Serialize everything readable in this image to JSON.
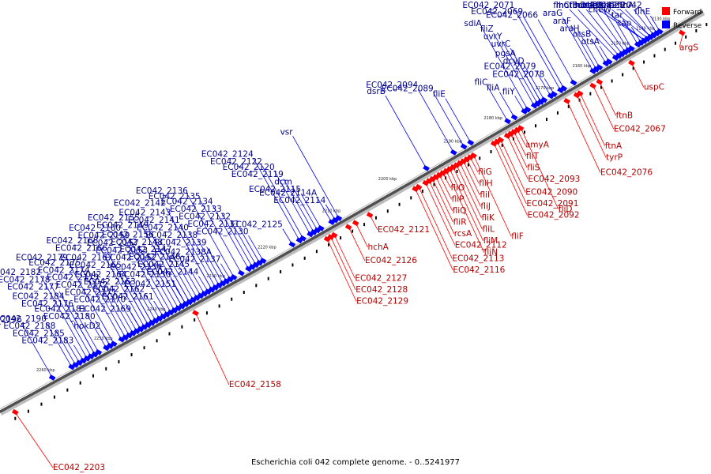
{
  "caption": "Escherichia coli 042 complete genome. - 0..5241977",
  "legend": [
    {
      "label": "Forward",
      "color": "#ff0000"
    },
    {
      "label": "Reverse",
      "color": "#0000ff"
    }
  ],
  "colors": {
    "forward": "#ff0000",
    "reverse": "#0000ff",
    "backbone": "#505050"
  },
  "ticks": [
    {
      "label": "2130 kbp",
      "t": 0.04
    },
    {
      "label": "2140 kbp",
      "t": 0.065
    },
    {
      "label": "2150 kbp",
      "t": 0.105
    },
    {
      "label": "2160 kbp",
      "t": 0.165
    },
    {
      "label": "2170 kbp",
      "t": 0.222
    },
    {
      "label": "2180 kbp",
      "t": 0.3
    },
    {
      "label": "2190 kbp",
      "t": 0.36
    },
    {
      "label": "2200 kbp",
      "t": 0.455
    },
    {
      "label": "2210 kbp",
      "t": 0.535
    },
    {
      "label": "2220 kbp",
      "t": 0.625
    },
    {
      "label": "2230 kbp",
      "t": 0.695
    },
    {
      "label": "2240 kbp",
      "t": 0.775
    },
    {
      "label": "2250 kbp",
      "t": 0.845
    },
    {
      "label": "2260 kbp",
      "t": 0.92
    }
  ],
  "reverse_genes": [
    {
      "name": "EC042_2156",
      "t": 0.75
    },
    {
      "name": "EC042_2155",
      "t": 0.755
    },
    {
      "name": "EC042_2146",
      "t": 0.735
    },
    {
      "name": "EC042_2145",
      "t": 0.73
    },
    {
      "name": "EC042_2144",
      "t": 0.725
    },
    {
      "name": "EC042_2143",
      "t": 0.72
    },
    {
      "name": "EC042_2161",
      "t": 0.785
    },
    {
      "name": "EC042_2154",
      "t": 0.76
    },
    {
      "name": "EC042_2138A",
      "t": 0.7
    },
    {
      "name": "EC042_2169",
      "t": 0.815
    },
    {
      "name": "EC042_2153",
      "t": 0.765
    },
    {
      "name": "EC042_2137",
      "t": 0.695
    },
    {
      "name": "EC042_2168",
      "t": 0.81
    },
    {
      "name": "EC042_2151",
      "t": 0.755
    },
    {
      "name": "EC042_2138",
      "t": 0.705
    },
    {
      "name": "EC042_2174",
      "t": 0.835
    },
    {
      "name": "EC042_2149",
      "t": 0.75
    },
    {
      "name": "EC042_2136",
      "t": 0.69
    },
    {
      "name": "EC042_2167",
      "t": 0.805
    },
    {
      "name": "EC042_2148",
      "t": 0.745
    },
    {
      "name": "EC042_2164",
      "t": 0.8
    },
    {
      "name": "EC042_2141",
      "t": 0.715
    },
    {
      "name": "EC042_2173",
      "t": 0.83
    },
    {
      "name": "EC042_2160",
      "t": 0.78
    },
    {
      "name": "EC042_2140",
      "t": 0.71
    },
    {
      "name": "EC042_2172",
      "t": 0.825
    },
    {
      "name": "EC042_2157",
      "t": 0.77
    },
    {
      "name": "EC042_2142",
      "t": 0.72
    },
    {
      "name": "EC042_2166",
      "t": 0.805
    },
    {
      "name": "EC042_2150",
      "t": 0.755
    },
    {
      "name": "EC042_2139",
      "t": 0.7
    },
    {
      "name": "EC042_2175",
      "t": 0.84
    },
    {
      "name": "EC042_2162",
      "t": 0.79
    },
    {
      "name": "EC042_2147",
      "t": 0.74
    },
    {
      "name": "hokD2",
      "t": 0.855
    },
    {
      "name": "EC042_2171",
      "t": 0.82
    },
    {
      "name": "EC042_2163",
      "t": 0.795
    },
    {
      "name": "EC042_2152",
      "t": 0.76
    },
    {
      "name": "EC042_2179",
      "t": 0.85
    },
    {
      "name": "EC042_2159",
      "t": 0.775
    },
    {
      "name": "EC042_2181",
      "t": 0.86
    },
    {
      "name": "EC042_2165",
      "t": 0.8
    },
    {
      "name": "EC042_2184",
      "t": 0.875
    },
    {
      "name": "EC042_2170",
      "t": 0.815
    },
    {
      "name": "EC042_2180",
      "t": 0.855
    },
    {
      "name": "EC042_2190",
      "t": 0.905
    },
    {
      "name": "EC042_2196",
      "t": 0.93
    },
    {
      "name": "EC042_2176",
      "t": 0.87
    },
    {
      "name": "EC042_2177",
      "t": 0.875
    },
    {
      "name": "EC042_2178",
      "t": 0.88
    },
    {
      "name": "EC042_2182",
      "t": 0.885
    },
    {
      "name": "EC042_2183",
      "t": 0.89
    },
    {
      "name": "EC042_2185",
      "t": 0.895
    },
    {
      "name": "EC042_2188",
      "t": 0.9
    },
    {
      "name": "EC042_2119",
      "t": 0.58
    },
    {
      "name": "dcm",
      "t": 0.575
    },
    {
      "name": "EC042_2115",
      "t": 0.57
    },
    {
      "name": "EC042_2124",
      "t": 0.6
    },
    {
      "name": "EC042_2114A",
      "t": 0.555
    },
    {
      "name": "EC042_2132",
      "t": 0.66
    },
    {
      "name": "EC042_2131",
      "t": 0.655
    },
    {
      "name": "EC042_2122",
      "t": 0.595
    },
    {
      "name": "EC042_2114",
      "t": 0.55
    },
    {
      "name": "vsr",
      "t": 0.545
    },
    {
      "name": "EC042_2120",
      "t": 0.585
    },
    {
      "name": "EC042_2130",
      "t": 0.65
    },
    {
      "name": "EC042_2134",
      "t": 0.67
    },
    {
      "name": "EC042_2125",
      "t": 0.61
    },
    {
      "name": "EC042_2133",
      "t": 0.665
    },
    {
      "name": "EC042_2135",
      "t": 0.68
    },
    {
      "name": "dsrB",
      "t": 0.42
    },
    {
      "name": "EC042_2089",
      "t": 0.365
    },
    {
      "name": "EC042_2094",
      "t": 0.38
    },
    {
      "name": "fliE",
      "t": 0.355
    },
    {
      "name": "fliC",
      "t": 0.3
    },
    {
      "name": "fliA",
      "t": 0.29
    },
    {
      "name": "fliY",
      "t": 0.275
    },
    {
      "name": "sdiA",
      "t": 0.27
    },
    {
      "name": "pgsA",
      "t": 0.25
    },
    {
      "name": "EC042_2078",
      "t": 0.23
    },
    {
      "name": "EC042_2079",
      "t": 0.235
    },
    {
      "name": "fliZ",
      "t": 0.26
    },
    {
      "name": "dcyD",
      "t": 0.245
    },
    {
      "name": "EC042_2069",
      "t": 0.215
    },
    {
      "name": "EC042_2066",
      "t": 0.2
    },
    {
      "name": "uvrY",
      "t": 0.255
    },
    {
      "name": "uvrC",
      "t": 0.25
    },
    {
      "name": "EC042_2071",
      "t": 0.22
    },
    {
      "name": "araH",
      "t": 0.16
    },
    {
      "name": "otsB",
      "t": 0.15
    },
    {
      "name": "araF",
      "t": 0.165
    },
    {
      "name": "otsA",
      "t": 0.145
    },
    {
      "name": "araG",
      "t": 0.17
    },
    {
      "name": "motA",
      "t": 0.12
    },
    {
      "name": "flhD",
      "t": 0.125
    },
    {
      "name": "cheA",
      "t": 0.115
    },
    {
      "name": "cheW",
      "t": 0.11
    },
    {
      "name": "motB",
      "t": 0.13
    },
    {
      "name": "flhC",
      "t": 0.135
    },
    {
      "name": "tar",
      "t": 0.1
    },
    {
      "name": "tap",
      "t": 0.095
    },
    {
      "name": "cheB",
      "t": 0.09
    },
    {
      "name": "cheR",
      "t": 0.09
    },
    {
      "name": "flhB",
      "t": 0.08
    },
    {
      "name": "EC042_2042",
      "t": 0.07
    },
    {
      "name": "cheY",
      "t": 0.085
    },
    {
      "name": "cheZ",
      "t": 0.08
    },
    {
      "name": "flhA",
      "t": 0.075
    },
    {
      "name": "flhE",
      "t": 0.065
    }
  ],
  "forward_genes": [
    {
      "name": "argS",
      "t": 0.04
    },
    {
      "name": "uspC",
      "t": 0.12
    },
    {
      "name": "ftnB",
      "t": 0.17
    },
    {
      "name": "EC042_2067",
      "t": 0.18
    },
    {
      "name": "ftnA",
      "t": 0.2
    },
    {
      "name": "tyrP",
      "t": 0.205
    },
    {
      "name": "EC042_2076",
      "t": 0.22
    },
    {
      "name": "fliD",
      "t": 0.29
    },
    {
      "name": "EC042_2093",
      "t": 0.31
    },
    {
      "name": "fliS",
      "t": 0.305
    },
    {
      "name": "fliT",
      "t": 0.3
    },
    {
      "name": "amyA",
      "t": 0.295
    },
    {
      "name": "EC042_2090",
      "t": 0.32
    },
    {
      "name": "EC042_2091",
      "t": 0.325
    },
    {
      "name": "EC042_2092",
      "t": 0.33
    },
    {
      "name": "fliF",
      "t": 0.36
    },
    {
      "name": "fliG",
      "t": 0.365
    },
    {
      "name": "fliH",
      "t": 0.37
    },
    {
      "name": "fliI",
      "t": 0.375
    },
    {
      "name": "fliJ",
      "t": 0.38
    },
    {
      "name": "fliK",
      "t": 0.385
    },
    {
      "name": "fliL",
      "t": 0.39
    },
    {
      "name": "fliM",
      "t": 0.395
    },
    {
      "name": "fliN",
      "t": 0.4
    },
    {
      "name": "fliO",
      "t": 0.405
    },
    {
      "name": "fliP",
      "t": 0.41
    },
    {
      "name": "fliQ",
      "t": 0.415
    },
    {
      "name": "fliR",
      "t": 0.42
    },
    {
      "name": "rcsA",
      "t": 0.425
    },
    {
      "name": "EC042_2112",
      "t": 0.43
    },
    {
      "name": "EC042_2113",
      "t": 0.44
    },
    {
      "name": "EC042_2116",
      "t": 0.445
    },
    {
      "name": "EC042_2121",
      "t": 0.51
    },
    {
      "name": "hchA",
      "t": 0.53
    },
    {
      "name": "EC042_2126",
      "t": 0.54
    },
    {
      "name": "EC042_2127",
      "t": 0.56
    },
    {
      "name": "EC042_2128",
      "t": 0.565
    },
    {
      "name": "EC042_2129",
      "t": 0.57
    },
    {
      "name": "EC042_2158",
      "t": 0.75
    },
    {
      "name": "EC042_2203",
      "t": 0.985
    }
  ]
}
